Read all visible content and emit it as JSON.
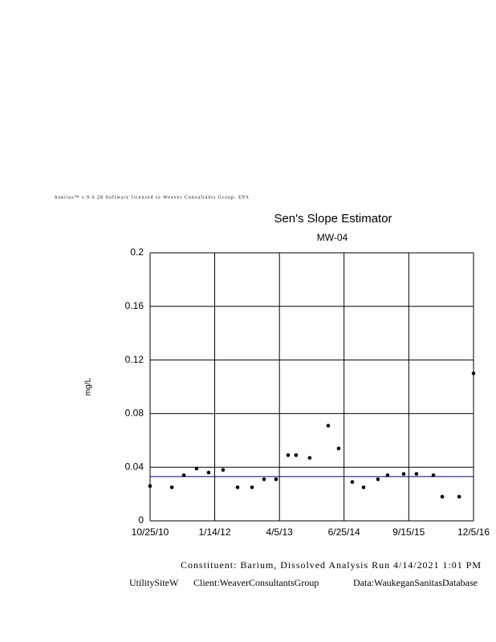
{
  "header": "Sanitas™ v.9.6.28 Software licensed to Weaver Consultants Group. EPA",
  "chart_data": {
    "type": "scatter",
    "title": "Sen's Slope Estimator",
    "subtitle": "MW-04",
    "y_label": "mg/L",
    "x": null,
    "series": [
      {
        "color": "#000000",
        "x": [
          "2010-10-25",
          "2011-03-24",
          "2011-06-15",
          "2011-09-11",
          "2011-12-03",
          "2012-03-12",
          "2012-06-20",
          "2012-09-28",
          "2012-12-20",
          "2013-03-13",
          "2013-06-04",
          "2013-07-29",
          "2013-10-31",
          "2014-03-08",
          "2014-05-19",
          "2014-08-21",
          "2014-11-07",
          "2015-02-14",
          "2015-04-22",
          "2015-08-11",
          "2015-11-07",
          "2016-03-03",
          "2016-05-03",
          "2016-08-28",
          "2016-12-05"
        ],
        "values": [
          0.026,
          0.025,
          0.034,
          0.039,
          0.036,
          0.038,
          0.025,
          0.025,
          0.031,
          0.031,
          0.049,
          0.049,
          0.047,
          0.071,
          0.054,
          0.029,
          0.025,
          0.031,
          0.034,
          0.035,
          0.035,
          0.034,
          0.018,
          0.018,
          0.11
        ]
      }
    ],
    "trend_line": {
      "color": "#000080",
      "x": [
        "2010-10-25",
        "2016-12-05"
      ],
      "values": [
        0.033,
        0.033
      ]
    },
    "xlim": [
      "2010-10-25",
      "2016-12-05"
    ],
    "xticks": [
      {
        "value": "2010-10-25",
        "label": "10/25/10"
      },
      {
        "value": "2012-01-14",
        "label": "1/14/12"
      },
      {
        "value": "2013-04-05",
        "label": "4/5/13"
      },
      {
        "value": "2014-06-25",
        "label": "6/25/14"
      },
      {
        "value": "2015-09-15",
        "label": "9/15/15"
      },
      {
        "value": "2016-12-05",
        "label": "12/5/16"
      }
    ],
    "ylim": [
      0,
      0.2
    ],
    "yticks": [
      0,
      0.04,
      0.08,
      0.12,
      0.16,
      0.2
    ],
    "grid": true
  },
  "footer": {
    "line1": "Constituent: Barium, Dissolved Analysis Run 4/14/2021 1:01 PM",
    "site": "UtilitySiteW",
    "client": "Client:WeaverConsultantsGroup",
    "data": "Data:WaukeganSanitasDatabase"
  }
}
